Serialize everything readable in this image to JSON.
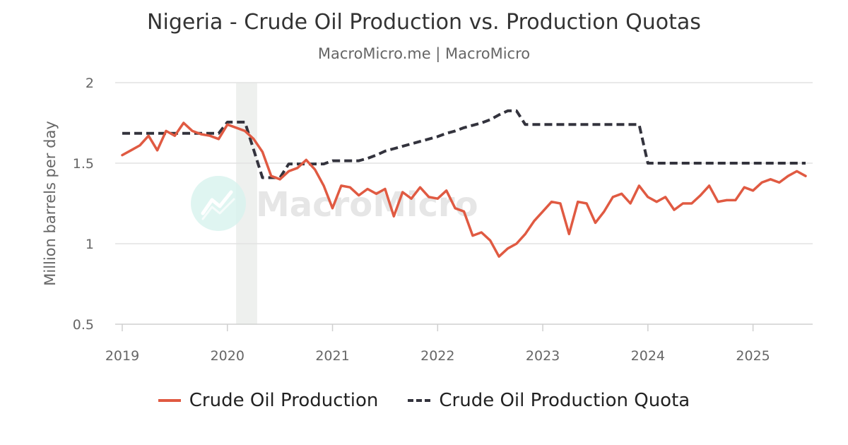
{
  "header": {
    "title": "Nigeria - Crude Oil Production vs. Production Quotas",
    "subtitle": "MacroMicro.me | MacroMicro"
  },
  "watermark": {
    "text": "MacroMicro",
    "icon": "chart-line-logo-icon"
  },
  "legend": {
    "items": [
      {
        "label": "Crude Oil Production",
        "color": "#e05a42",
        "style": "solid"
      },
      {
        "label": "Crude Oil Production Quota",
        "color": "#33333d",
        "style": "dashed"
      }
    ]
  },
  "chart_data": {
    "type": "line",
    "title": "Nigeria - Crude Oil Production vs. Production Quotas",
    "subtitle": "MacroMicro.me | MacroMicro",
    "ylabel": "Million barrels per day",
    "xlabel": "",
    "ylim": [
      0.5,
      2
    ],
    "yticks": [
      0.5,
      1,
      1.5,
      2
    ],
    "ytick_labels": [
      "0.5",
      "1",
      "1.5",
      "2"
    ],
    "xlim": [
      "2019-01",
      "2025-07"
    ],
    "xticks": [
      "2019",
      "2020",
      "2021",
      "2022",
      "2023",
      "2024",
      "2025"
    ],
    "grid": "horizontal",
    "legend_position": "bottom",
    "shaded_period": {
      "start": "2020-02",
      "end": "2020-04",
      "color": "#eef0ee"
    },
    "series": [
      {
        "name": "Crude Oil Production",
        "color": "#e05a42",
        "style": "solid",
        "points": [
          [
            "2019-01",
            1.55
          ],
          [
            "2019-02",
            1.58
          ],
          [
            "2019-03",
            1.61
          ],
          [
            "2019-04",
            1.67
          ],
          [
            "2019-05",
            1.58
          ],
          [
            "2019-06",
            1.7
          ],
          [
            "2019-07",
            1.67
          ],
          [
            "2019-08",
            1.75
          ],
          [
            "2019-09",
            1.7
          ],
          [
            "2019-10",
            1.68
          ],
          [
            "2019-11",
            1.67
          ],
          [
            "2019-12",
            1.65
          ],
          [
            "2020-01",
            1.74
          ],
          [
            "2020-02",
            1.72
          ],
          [
            "2020-03",
            1.7
          ],
          [
            "2020-04",
            1.65
          ],
          [
            "2020-05",
            1.57
          ],
          [
            "2020-06",
            1.42
          ],
          [
            "2020-07",
            1.4
          ],
          [
            "2020-08",
            1.45
          ],
          [
            "2020-09",
            1.47
          ],
          [
            "2020-10",
            1.52
          ],
          [
            "2020-11",
            1.46
          ],
          [
            "2020-12",
            1.36
          ],
          [
            "2021-01",
            1.22
          ],
          [
            "2021-02",
            1.36
          ],
          [
            "2021-03",
            1.35
          ],
          [
            "2021-04",
            1.3
          ],
          [
            "2021-05",
            1.34
          ],
          [
            "2021-06",
            1.31
          ],
          [
            "2021-07",
            1.34
          ],
          [
            "2021-08",
            1.17
          ],
          [
            "2021-09",
            1.32
          ],
          [
            "2021-10",
            1.28
          ],
          [
            "2021-11",
            1.35
          ],
          [
            "2021-12",
            1.29
          ],
          [
            "2022-01",
            1.28
          ],
          [
            "2022-02",
            1.33
          ],
          [
            "2022-03",
            1.22
          ],
          [
            "2022-04",
            1.2
          ],
          [
            "2022-05",
            1.05
          ],
          [
            "2022-06",
            1.07
          ],
          [
            "2022-07",
            1.02
          ],
          [
            "2022-08",
            0.92
          ],
          [
            "2022-09",
            0.97
          ],
          [
            "2022-10",
            1.0
          ],
          [
            "2022-11",
            1.06
          ],
          [
            "2022-12",
            1.14
          ],
          [
            "2023-01",
            1.2
          ],
          [
            "2023-02",
            1.26
          ],
          [
            "2023-03",
            1.25
          ],
          [
            "2023-04",
            1.06
          ],
          [
            "2023-05",
            1.26
          ],
          [
            "2023-06",
            1.25
          ],
          [
            "2023-07",
            1.13
          ],
          [
            "2023-08",
            1.2
          ],
          [
            "2023-09",
            1.29
          ],
          [
            "2023-10",
            1.31
          ],
          [
            "2023-11",
            1.25
          ],
          [
            "2023-12",
            1.36
          ],
          [
            "2024-01",
            1.29
          ],
          [
            "2024-02",
            1.26
          ],
          [
            "2024-03",
            1.29
          ],
          [
            "2024-04",
            1.21
          ],
          [
            "2024-05",
            1.25
          ],
          [
            "2024-06",
            1.25
          ],
          [
            "2024-07",
            1.3
          ],
          [
            "2024-08",
            1.36
          ],
          [
            "2024-09",
            1.26
          ],
          [
            "2024-10",
            1.27
          ],
          [
            "2024-11",
            1.27
          ],
          [
            "2024-12",
            1.35
          ],
          [
            "2025-01",
            1.33
          ],
          [
            "2025-02",
            1.38
          ],
          [
            "2025-03",
            1.4
          ],
          [
            "2025-04",
            1.38
          ],
          [
            "2025-05",
            1.42
          ],
          [
            "2025-06",
            1.45
          ],
          [
            "2025-07",
            1.42
          ]
        ]
      },
      {
        "name": "Crude Oil Production Quota",
        "color": "#33333d",
        "style": "dashed",
        "points": [
          [
            "2019-01",
            1.685
          ],
          [
            "2019-12",
            1.685
          ],
          [
            "2020-01",
            1.755
          ],
          [
            "2020-03",
            1.755
          ],
          [
            "2020-05",
            1.41
          ],
          [
            "2020-07",
            1.41
          ],
          [
            "2020-08",
            1.495
          ],
          [
            "2020-12",
            1.495
          ],
          [
            "2021-01",
            1.515
          ],
          [
            "2021-04",
            1.515
          ],
          [
            "2021-05",
            1.53
          ],
          [
            "2021-06",
            1.55
          ],
          [
            "2021-07",
            1.575
          ],
          [
            "2021-08",
            1.59
          ],
          [
            "2021-09",
            1.605
          ],
          [
            "2021-10",
            1.62
          ],
          [
            "2021-11",
            1.635
          ],
          [
            "2021-12",
            1.65
          ],
          [
            "2022-01",
            1.665
          ],
          [
            "2022-02",
            1.685
          ],
          [
            "2022-03",
            1.7
          ],
          [
            "2022-04",
            1.72
          ],
          [
            "2022-05",
            1.735
          ],
          [
            "2022-06",
            1.75
          ],
          [
            "2022-07",
            1.77
          ],
          [
            "2022-08",
            1.8
          ],
          [
            "2022-09",
            1.825
          ],
          [
            "2022-10",
            1.825
          ],
          [
            "2022-11",
            1.74
          ],
          [
            "2023-12",
            1.74
          ],
          [
            "2024-01",
            1.5
          ],
          [
            "2025-07",
            1.5
          ]
        ]
      }
    ]
  }
}
